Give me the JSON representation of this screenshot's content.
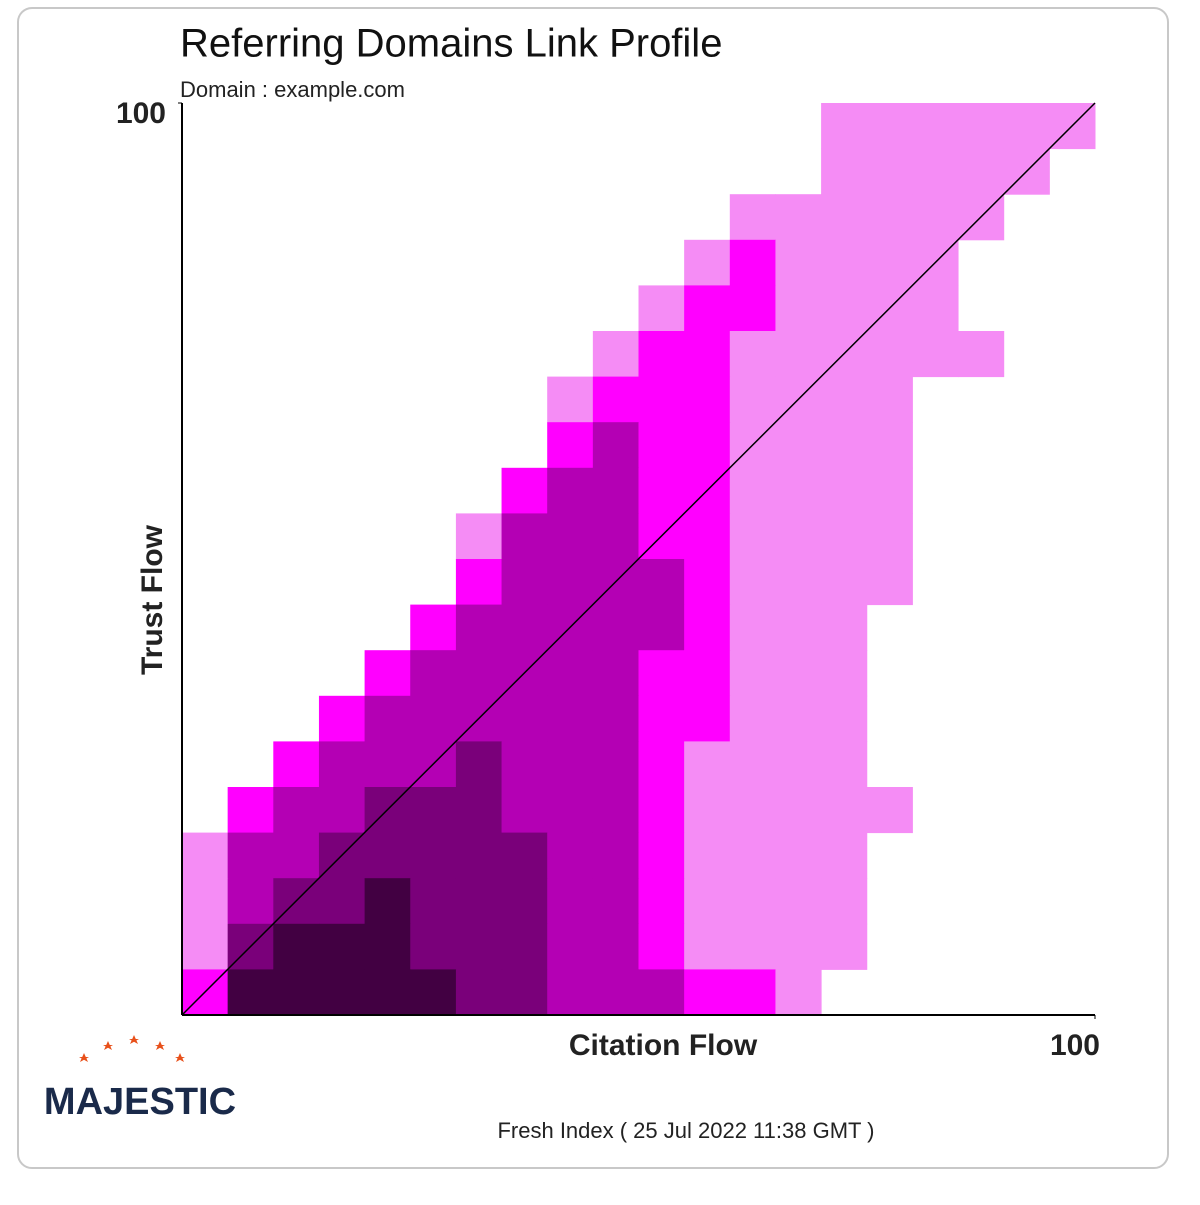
{
  "chart_data": {
    "type": "heatmap",
    "title": "Referring Domains Link Profile",
    "subtitle": "Domain : example.com",
    "xlabel": "Citation Flow",
    "ylabel": "Trust Flow",
    "footer": "Fresh Index ( 25 Jul 2022 11:38 GMT )",
    "logo": "MAJESTIC",
    "xlim": [
      0,
      100
    ],
    "ylim": [
      0,
      100
    ],
    "xticks": [
      100
    ],
    "yticks": [
      100
    ],
    "xbins": [
      0,
      5,
      10,
      15,
      20,
      25,
      30,
      35,
      40,
      45,
      50,
      55,
      60,
      65,
      70,
      75,
      80,
      85,
      90,
      95,
      100
    ],
    "ybins": [
      100,
      95,
      90,
      85,
      80,
      75,
      70,
      65,
      60,
      55,
      50,
      45,
      40,
      35,
      30,
      25,
      20,
      15,
      10,
      5,
      0
    ],
    "diagonal": true,
    "colors": [
      "#ffffff",
      "#f58cf5",
      "#ff00ff",
      "#b400b4",
      "#7a007a",
      "#420042"
    ],
    "z": [
      [
        0,
        0,
        0,
        0,
        0,
        0,
        0,
        0,
        0,
        0,
        0,
        0,
        0,
        0,
        1,
        1,
        1,
        1,
        1,
        1
      ],
      [
        0,
        0,
        0,
        0,
        0,
        0,
        0,
        0,
        0,
        0,
        0,
        0,
        0,
        0,
        1,
        1,
        1,
        1,
        1,
        0
      ],
      [
        0,
        0,
        0,
        0,
        0,
        0,
        0,
        0,
        0,
        0,
        0,
        0,
        1,
        1,
        1,
        1,
        1,
        1,
        0,
        0
      ],
      [
        0,
        0,
        0,
        0,
        0,
        0,
        0,
        0,
        0,
        0,
        0,
        1,
        2,
        1,
        1,
        1,
        1,
        0,
        0,
        0
      ],
      [
        0,
        0,
        0,
        0,
        0,
        0,
        0,
        0,
        0,
        0,
        1,
        2,
        2,
        1,
        1,
        1,
        1,
        0,
        0,
        0
      ],
      [
        0,
        0,
        0,
        0,
        0,
        0,
        0,
        0,
        0,
        1,
        2,
        2,
        1,
        1,
        1,
        1,
        1,
        1,
        0,
        0
      ],
      [
        0,
        0,
        0,
        0,
        0,
        0,
        0,
        0,
        1,
        2,
        2,
        2,
        1,
        1,
        1,
        1,
        0,
        0,
        0,
        0
      ],
      [
        0,
        0,
        0,
        0,
        0,
        0,
        0,
        0,
        2,
        3,
        2,
        2,
        1,
        1,
        1,
        1,
        0,
        0,
        0,
        0
      ],
      [
        0,
        0,
        0,
        0,
        0,
        0,
        0,
        2,
        3,
        3,
        2,
        2,
        1,
        1,
        1,
        1,
        0,
        0,
        0,
        0
      ],
      [
        0,
        0,
        0,
        0,
        0,
        0,
        1,
        3,
        3,
        3,
        2,
        2,
        1,
        1,
        1,
        1,
        0,
        0,
        0,
        0
      ],
      [
        0,
        0,
        0,
        0,
        0,
        0,
        2,
        3,
        3,
        3,
        3,
        2,
        1,
        1,
        1,
        1,
        0,
        0,
        0,
        0
      ],
      [
        0,
        0,
        0,
        0,
        0,
        2,
        3,
        3,
        3,
        3,
        3,
        2,
        1,
        1,
        1,
        0,
        0,
        0,
        0,
        0
      ],
      [
        0,
        0,
        0,
        0,
        2,
        3,
        3,
        3,
        3,
        3,
        2,
        2,
        1,
        1,
        1,
        0,
        0,
        0,
        0,
        0
      ],
      [
        0,
        0,
        0,
        2,
        3,
        3,
        3,
        3,
        3,
        3,
        2,
        2,
        1,
        1,
        1,
        0,
        0,
        0,
        0,
        0
      ],
      [
        0,
        0,
        2,
        3,
        3,
        3,
        4,
        3,
        3,
        3,
        2,
        1,
        1,
        1,
        1,
        0,
        0,
        0,
        0,
        0
      ],
      [
        0,
        2,
        3,
        3,
        4,
        4,
        4,
        3,
        3,
        3,
        2,
        1,
        1,
        1,
        1,
        1,
        0,
        0,
        0,
        0
      ],
      [
        1,
        3,
        3,
        4,
        4,
        4,
        4,
        4,
        3,
        3,
        2,
        1,
        1,
        1,
        1,
        0,
        0,
        0,
        0,
        0
      ],
      [
        1,
        3,
        4,
        4,
        5,
        4,
        4,
        4,
        3,
        3,
        2,
        1,
        1,
        1,
        1,
        0,
        0,
        0,
        0,
        0
      ],
      [
        1,
        4,
        5,
        5,
        5,
        4,
        4,
        4,
        3,
        3,
        2,
        1,
        1,
        1,
        1,
        0,
        0,
        0,
        0,
        0
      ],
      [
        2,
        5,
        5,
        5,
        5,
        5,
        4,
        4,
        3,
        3,
        3,
        2,
        2,
        1,
        0,
        0,
        0,
        0,
        0,
        0
      ]
    ]
  }
}
